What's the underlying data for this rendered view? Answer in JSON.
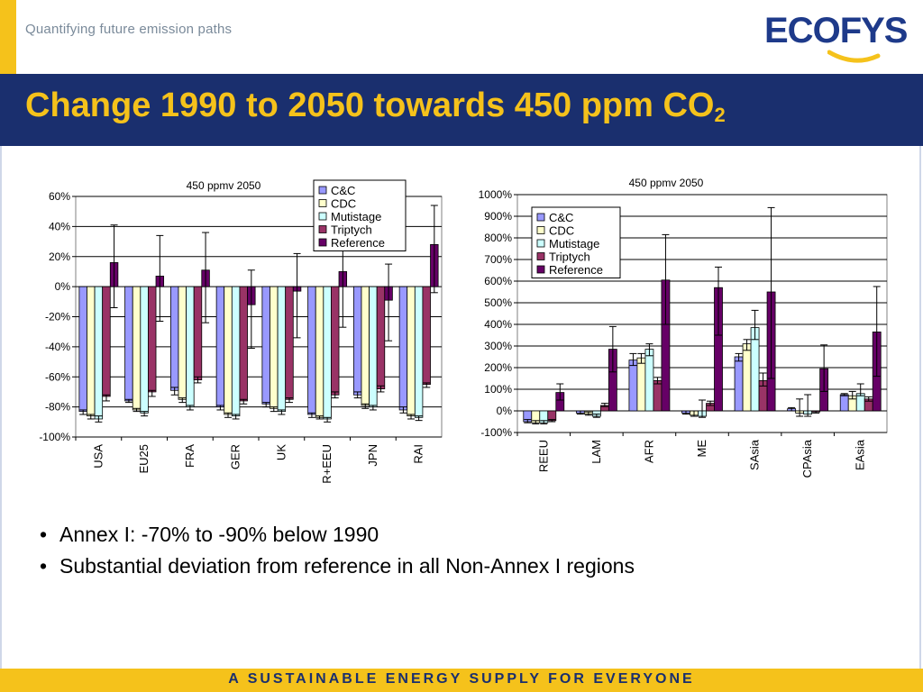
{
  "header": {
    "subtitle": "Quantifying future emission paths",
    "logo_text_a": "ECO",
    "logo_text_b": "FYS"
  },
  "slide_title": "Change 1990 to 2050 towards 450 ppm CO",
  "slide_title_sub": "2",
  "bullets": [
    "Annex I: -70% to -90% below 1990",
    "Substantial deviation from reference in all Non-Annex I regions"
  ],
  "footer_text": "A SUSTAINABLE ENERGY SUPPLY FOR EVERYONE",
  "colors": {
    "accent": "#f5c21b",
    "band": "#1a2f6e",
    "series": [
      "#9999ff",
      "#ffffcc",
      "#ccffff",
      "#993366",
      "#660066"
    ]
  },
  "chart_data": [
    {
      "type": "bar",
      "title": "450 ppmv 2050",
      "categories": [
        "USA",
        "EU25",
        "FRA",
        "GER",
        "UK",
        "R+EEU",
        "JPN",
        "RAI"
      ],
      "ylim": [
        -100,
        60
      ],
      "yticks": [
        -100,
        -80,
        -60,
        -40,
        -20,
        0,
        20,
        40,
        60
      ],
      "ytick_labels": [
        "-100%",
        "-80%",
        "-60%",
        "-40%",
        "-20%",
        "0%",
        "20%",
        "40%",
        "60%"
      ],
      "grid": true,
      "legend": "top-right",
      "series": [
        {
          "name": "C&C",
          "values": [
            -83,
            -76,
            -69,
            -80,
            -78,
            -85,
            -72,
            -82
          ]
        },
        {
          "name": "CDC",
          "values": [
            -86,
            -82,
            -75,
            -85,
            -81,
            -87,
            -79,
            -86
          ]
        },
        {
          "name": "Mutistage",
          "values": [
            -88,
            -84,
            -80,
            -86,
            -83,
            -88,
            -80,
            -87
          ]
        },
        {
          "name": "Triptych",
          "values": [
            -73,
            -70,
            -62,
            -76,
            -75,
            -72,
            -68,
            -65
          ]
        },
        {
          "name": "Reference",
          "values": [
            16,
            7,
            11,
            -12,
            -3,
            10,
            -9,
            28
          ]
        }
      ],
      "errorbars": [
        [
          [
            -82,
            -85
          ],
          [
            -75,
            -77
          ],
          [
            -67,
            -72
          ],
          [
            -79,
            -82
          ],
          [
            -77,
            -80
          ],
          [
            -84,
            -87
          ],
          [
            -70,
            -74
          ],
          [
            -80,
            -84
          ]
        ],
        [
          [
            -85,
            -88
          ],
          [
            -81,
            -83
          ],
          [
            -74,
            -77
          ],
          [
            -84,
            -87
          ],
          [
            -80,
            -83
          ],
          [
            -86,
            -88
          ],
          [
            -78,
            -81
          ],
          [
            -85,
            -88
          ]
        ],
        [
          [
            -86,
            -90
          ],
          [
            -83,
            -86
          ],
          [
            -79,
            -82
          ],
          [
            -85,
            -88
          ],
          [
            -82,
            -85
          ],
          [
            -87,
            -90
          ],
          [
            -79,
            -82
          ],
          [
            -86,
            -89
          ]
        ],
        [
          [
            -72,
            -76
          ],
          [
            -69,
            -73
          ],
          [
            -60,
            -64
          ],
          [
            -75,
            -78
          ],
          [
            -74,
            -77
          ],
          [
            -70,
            -74
          ],
          [
            -66,
            -70
          ],
          [
            -64,
            -67
          ]
        ],
        [
          [
            41,
            -14
          ],
          [
            34,
            -23
          ],
          [
            36,
            -24
          ],
          [
            11,
            -41
          ],
          [
            22,
            -34
          ],
          [
            35,
            -27
          ],
          [
            15,
            -36
          ],
          [
            54,
            -4
          ]
        ]
      ]
    },
    {
      "type": "bar",
      "title": "450 ppmv 2050",
      "categories": [
        "REEU",
        "LAM",
        "AFR",
        "ME",
        "SAsia",
        "CPAsia",
        "EAsia"
      ],
      "ylim": [
        -100,
        1000
      ],
      "yticks": [
        -100,
        0,
        100,
        200,
        300,
        400,
        500,
        600,
        700,
        800,
        900,
        1000
      ],
      "ytick_labels": [
        "-100%",
        "0%",
        "100%",
        "200%",
        "300%",
        "400%",
        "500%",
        "600%",
        "700%",
        "800%",
        "900%",
        "1000%"
      ],
      "grid": true,
      "legend": "top-left",
      "series": [
        {
          "name": "C&C",
          "values": [
            -50,
            -10,
            235,
            -10,
            250,
            10,
            75
          ]
        },
        {
          "name": "CDC",
          "values": [
            -55,
            -15,
            245,
            -20,
            310,
            -10,
            70
          ]
        },
        {
          "name": "Mutistage",
          "values": [
            -55,
            -25,
            285,
            -25,
            385,
            -15,
            80
          ]
        },
        {
          "name": "Triptych",
          "values": [
            -45,
            25,
            140,
            35,
            140,
            -5,
            55
          ]
        },
        {
          "name": "Reference",
          "values": [
            85,
            285,
            605,
            570,
            550,
            195,
            365
          ]
        }
      ],
      "errorbars": [
        [
          [
            -40,
            -55
          ],
          [
            0,
            -15
          ],
          [
            265,
            210
          ],
          [
            0,
            -15
          ],
          [
            265,
            230
          ],
          [
            15,
            0
          ],
          [
            80,
            70
          ]
        ],
        [
          [
            -45,
            -60
          ],
          [
            -5,
            -20
          ],
          [
            265,
            220
          ],
          [
            0,
            -25
          ],
          [
            330,
            280
          ],
          [
            55,
            -25
          ],
          [
            90,
            55
          ]
        ],
        [
          [
            -45,
            -60
          ],
          [
            -15,
            -30
          ],
          [
            310,
            255
          ],
          [
            50,
            -30
          ],
          [
            465,
            330
          ],
          [
            75,
            -25
          ],
          [
            125,
            70
          ]
        ],
        [
          [
            -40,
            -50
          ],
          [
            35,
            20
          ],
          [
            155,
            125
          ],
          [
            45,
            25
          ],
          [
            175,
            115
          ],
          [
            0,
            -10
          ],
          [
            65,
            45
          ]
        ],
        [
          [
            125,
            50
          ],
          [
            390,
            180
          ],
          [
            815,
            400
          ],
          [
            665,
            350
          ],
          [
            940,
            150
          ],
          [
            305,
            90
          ],
          [
            575,
            160
          ]
        ]
      ]
    }
  ]
}
